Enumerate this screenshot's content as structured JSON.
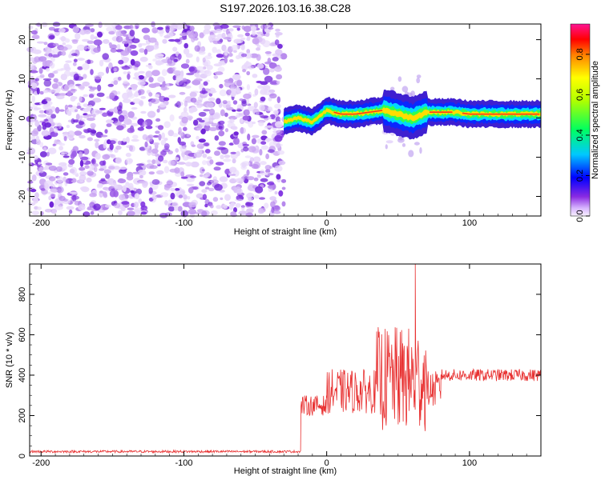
{
  "page_title": "S197.2026.103.16.38.C28",
  "chart_data": [
    {
      "type": "heatmap",
      "title": "S197.2026.103.16.38.C28",
      "xlabel": "Height of straight line (km)",
      "ylabel": "Frequency (Hz)",
      "xlim": [
        -208,
        150
      ],
      "ylim": [
        -25,
        24
      ],
      "x_ticks": [
        "-200",
        "-100",
        "0",
        "100"
      ],
      "y_ticks": [
        "20",
        "10",
        "0",
        "-10",
        "-20"
      ],
      "noise_region_km": [
        -208,
        -30
      ],
      "signal_start_km": -30,
      "burst_region_km": [
        40,
        70
      ],
      "signal_frequency_trace": [
        {
          "x": -30,
          "y": -1.0
        },
        {
          "x": -20,
          "y": 0.0
        },
        {
          "x": -10,
          "y": -1.0
        },
        {
          "x": 0,
          "y": 2.0
        },
        {
          "x": 10,
          "y": 1.0
        },
        {
          "x": 20,
          "y": 1.0
        },
        {
          "x": 30,
          "y": 1.5
        },
        {
          "x": 40,
          "y": 2.0
        },
        {
          "x": 50,
          "y": 1.0
        },
        {
          "x": 60,
          "y": 0.0
        },
        {
          "x": 70,
          "y": 1.5
        },
        {
          "x": 90,
          "y": 1.5
        },
        {
          "x": 100,
          "y": 1.0
        },
        {
          "x": 120,
          "y": 1.0
        },
        {
          "x": 150,
          "y": 1.0
        }
      ],
      "colorbar": {
        "label": "Normalized spectral amplitude",
        "range": [
          0,
          0.95
        ],
        "ticks": [
          "0.0",
          "0.2",
          "0.4",
          "0.6",
          "0.8"
        ]
      }
    },
    {
      "type": "line",
      "xlabel": "Height of straight line (km)",
      "ylabel": "SNR (10 * v/v)",
      "xlim": [
        -208,
        150
      ],
      "ylim": [
        0,
        950
      ],
      "x_ticks": [
        "-200",
        "-100",
        "0",
        "100"
      ],
      "y_ticks": [
        "0",
        "200",
        "400",
        "600",
        "800"
      ],
      "color": "#e83030",
      "series": [
        {
          "name": "SNR",
          "segments": [
            {
              "x_start": -208,
              "x_end": -18,
              "mean": 22,
              "spread": 6
            },
            {
              "x_start": -18,
              "x_end": 0,
              "mean": 250,
              "spread": 50
            },
            {
              "x_start": 0,
              "x_end": 35,
              "mean": 320,
              "spread": 110
            },
            {
              "x_start": 35,
              "x_end": 70,
              "mean": 380,
              "spread": 260
            },
            {
              "x_start": 70,
              "x_end": 80,
              "mean": 330,
              "spread": 90
            },
            {
              "x_start": 80,
              "x_end": 150,
              "mean": 400,
              "spread": 30
            }
          ],
          "peak": {
            "x": 62,
            "y": 950
          }
        }
      ]
    }
  ]
}
